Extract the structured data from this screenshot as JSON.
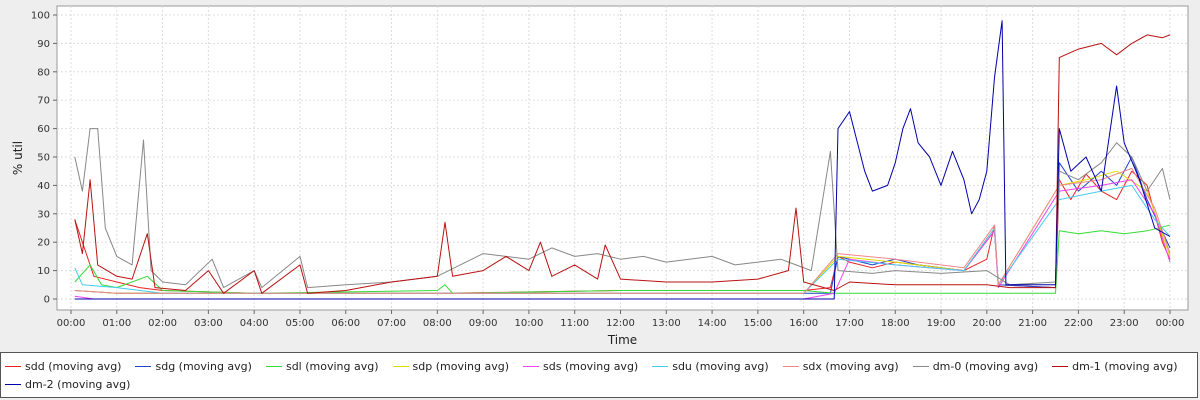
{
  "chart_data": {
    "type": "line",
    "title": "",
    "xlabel": "Time",
    "ylabel": "% util",
    "xlim": [
      "00:00",
      "24:00"
    ],
    "ylim": [
      0,
      100
    ],
    "grid": true,
    "legend_position": "bottom",
    "x_ticks": [
      "00:00",
      "01:00",
      "02:00",
      "03:00",
      "04:00",
      "05:00",
      "06:00",
      "07:00",
      "08:00",
      "09:00",
      "10:00",
      "11:00",
      "12:00",
      "13:00",
      "14:00",
      "15:00",
      "16:00",
      "17:00",
      "18:00",
      "19:00",
      "20:00",
      "21:00",
      "22:00",
      "23:00",
      "00:00"
    ],
    "y_ticks": [
      0,
      10,
      20,
      30,
      40,
      50,
      60,
      70,
      80,
      90,
      100
    ],
    "series": [
      {
        "name": "sdd (moving avg)",
        "color": "#ee2222",
        "points": [
          [
            "00:05",
            28
          ],
          [
            "00:15",
            20
          ],
          [
            "00:30",
            8
          ],
          [
            "01:00",
            6
          ],
          [
            "01:30",
            4
          ],
          [
            "02:00",
            3
          ],
          [
            "04:00",
            2
          ],
          [
            "08:00",
            2
          ],
          [
            "12:00",
            3
          ],
          [
            "16:00",
            3
          ],
          [
            "16:35",
            4
          ],
          [
            "16:45",
            15
          ],
          [
            "17:00",
            13
          ],
          [
            "17:30",
            11
          ],
          [
            "18:00",
            13
          ],
          [
            "18:30",
            12
          ],
          [
            "19:00",
            11
          ],
          [
            "19:30",
            10
          ],
          [
            "20:00",
            14
          ],
          [
            "20:10",
            26
          ],
          [
            "20:15",
            5
          ],
          [
            "21:30",
            4
          ],
          [
            "21:35",
            42
          ],
          [
            "21:50",
            35
          ],
          [
            "22:10",
            44
          ],
          [
            "22:30",
            38
          ],
          [
            "22:50",
            35
          ],
          [
            "23:10",
            45
          ],
          [
            "23:30",
            40
          ],
          [
            "23:50",
            20
          ],
          [
            "00:00",
            14
          ]
        ]
      },
      {
        "name": "sdg (moving avg)",
        "color": "#2244cc",
        "points": [
          [
            "00:05",
            3
          ],
          [
            "01:00",
            2
          ],
          [
            "08:00",
            2
          ],
          [
            "16:00",
            2
          ],
          [
            "16:35",
            2
          ],
          [
            "16:45",
            15
          ],
          [
            "17:30",
            12
          ],
          [
            "18:00",
            14
          ],
          [
            "18:30",
            12
          ],
          [
            "19:30",
            10
          ],
          [
            "20:10",
            24
          ],
          [
            "20:15",
            5
          ],
          [
            "21:30",
            4
          ],
          [
            "21:35",
            48
          ],
          [
            "22:00",
            38
          ],
          [
            "22:30",
            45
          ],
          [
            "22:50",
            40
          ],
          [
            "23:10",
            50
          ],
          [
            "23:30",
            35
          ],
          [
            "00:00",
            18
          ]
        ]
      },
      {
        "name": "sdl (moving avg)",
        "color": "#33dd33",
        "points": [
          [
            "00:05",
            6
          ],
          [
            "00:25",
            12
          ],
          [
            "00:40",
            5
          ],
          [
            "01:00",
            4
          ],
          [
            "01:40",
            8
          ],
          [
            "02:00",
            3
          ],
          [
            "04:00",
            2
          ],
          [
            "08:00",
            3
          ],
          [
            "08:10",
            5
          ],
          [
            "08:20",
            2
          ],
          [
            "12:00",
            3
          ],
          [
            "16:00",
            3
          ],
          [
            "16:40",
            2
          ],
          [
            "17:00",
            2
          ],
          [
            "19:00",
            2
          ],
          [
            "20:30",
            2
          ],
          [
            "21:30",
            2
          ],
          [
            "21:35",
            24
          ],
          [
            "22:00",
            23
          ],
          [
            "22:30",
            24
          ],
          [
            "23:00",
            23
          ],
          [
            "23:30",
            24
          ],
          [
            "00:00",
            26
          ]
        ]
      },
      {
        "name": "sdp (moving avg)",
        "color": "#dddd00",
        "points": [
          [
            "00:05",
            3
          ],
          [
            "01:00",
            2
          ],
          [
            "08:00",
            2
          ],
          [
            "16:00",
            2
          ],
          [
            "16:45",
            15
          ],
          [
            "18:00",
            13
          ],
          [
            "19:30",
            10
          ],
          [
            "20:10",
            25
          ],
          [
            "20:15",
            5
          ],
          [
            "21:35",
            40
          ],
          [
            "22:10",
            42
          ],
          [
            "22:50",
            45
          ],
          [
            "23:30",
            38
          ],
          [
            "00:00",
            15
          ]
        ]
      },
      {
        "name": "sds (moving avg)",
        "color": "#ee44ee",
        "points": [
          [
            "00:05",
            1
          ],
          [
            "00:30",
            0
          ],
          [
            "01:00",
            0
          ],
          [
            "04:00",
            0
          ],
          [
            "08:00",
            0
          ],
          [
            "16:00",
            0
          ],
          [
            "16:40",
            2
          ],
          [
            "17:00",
            14
          ],
          [
            "18:00",
            12
          ],
          [
            "19:30",
            10
          ],
          [
            "20:10",
            24
          ],
          [
            "20:15",
            4
          ],
          [
            "21:35",
            38
          ],
          [
            "22:30",
            40
          ],
          [
            "23:10",
            42
          ],
          [
            "23:40",
            30
          ],
          [
            "00:00",
            13
          ]
        ]
      },
      {
        "name": "sdu (moving avg)",
        "color": "#44ccee",
        "points": [
          [
            "00:05",
            11
          ],
          [
            "00:15",
            5
          ],
          [
            "01:00",
            4
          ],
          [
            "02:00",
            2
          ],
          [
            "08:00",
            2
          ],
          [
            "16:00",
            2
          ],
          [
            "16:45",
            14
          ],
          [
            "18:00",
            12
          ],
          [
            "19:30",
            10
          ],
          [
            "20:10",
            25
          ],
          [
            "20:15",
            5
          ],
          [
            "21:35",
            35
          ],
          [
            "22:30",
            38
          ],
          [
            "23:10",
            40
          ],
          [
            "23:40",
            28
          ],
          [
            "00:00",
            22
          ]
        ]
      },
      {
        "name": "sdx (moving avg)",
        "color": "#ee8888",
        "points": [
          [
            "00:05",
            3
          ],
          [
            "01:00",
            2
          ],
          [
            "08:00",
            2
          ],
          [
            "16:00",
            2
          ],
          [
            "16:45",
            16
          ],
          [
            "18:00",
            14
          ],
          [
            "19:30",
            11
          ],
          [
            "20:10",
            26
          ],
          [
            "20:15",
            5
          ],
          [
            "21:35",
            40
          ],
          [
            "22:30",
            42
          ],
          [
            "23:10",
            46
          ],
          [
            "23:40",
            32
          ],
          [
            "00:00",
            16
          ]
        ]
      },
      {
        "name": "dm-0 (moving avg)",
        "color": "#888888",
        "points": [
          [
            "00:05",
            50
          ],
          [
            "00:15",
            38
          ],
          [
            "00:25",
            60
          ],
          [
            "00:35",
            60
          ],
          [
            "00:45",
            25
          ],
          [
            "01:00",
            15
          ],
          [
            "01:20",
            12
          ],
          [
            "01:35",
            56
          ],
          [
            "01:45",
            10
          ],
          [
            "02:00",
            6
          ],
          [
            "02:30",
            5
          ],
          [
            "03:05",
            14
          ],
          [
            "03:20",
            4
          ],
          [
            "04:00",
            10
          ],
          [
            "04:10",
            4
          ],
          [
            "05:00",
            15
          ],
          [
            "05:10",
            4
          ],
          [
            "06:00",
            5
          ],
          [
            "07:00",
            6
          ],
          [
            "08:00",
            8
          ],
          [
            "08:30",
            12
          ],
          [
            "09:00",
            16
          ],
          [
            "09:30",
            15
          ],
          [
            "10:00",
            14
          ],
          [
            "10:30",
            18
          ],
          [
            "11:00",
            15
          ],
          [
            "11:30",
            16
          ],
          [
            "12:00",
            14
          ],
          [
            "12:30",
            15
          ],
          [
            "13:00",
            13
          ],
          [
            "13:30",
            14
          ],
          [
            "14:00",
            15
          ],
          [
            "14:30",
            12
          ],
          [
            "15:00",
            13
          ],
          [
            "15:30",
            14
          ],
          [
            "15:50",
            12
          ],
          [
            "16:10",
            10
          ],
          [
            "16:35",
            52
          ],
          [
            "16:45",
            10
          ],
          [
            "17:30",
            9
          ],
          [
            "18:00",
            10
          ],
          [
            "19:00",
            9
          ],
          [
            "20:00",
            10
          ],
          [
            "20:30",
            5
          ],
          [
            "21:30",
            6
          ],
          [
            "21:35",
            45
          ],
          [
            "22:00",
            42
          ],
          [
            "22:30",
            48
          ],
          [
            "22:50",
            55
          ],
          [
            "23:10",
            50
          ],
          [
            "23:30",
            38
          ],
          [
            "23:50",
            46
          ],
          [
            "00:00",
            35
          ]
        ]
      },
      {
        "name": "dm-1 (moving avg)",
        "color": "#bb1111",
        "points": [
          [
            "00:05",
            28
          ],
          [
            "00:15",
            16
          ],
          [
            "00:25",
            42
          ],
          [
            "00:35",
            12
          ],
          [
            "01:00",
            8
          ],
          [
            "01:20",
            7
          ],
          [
            "01:40",
            23
          ],
          [
            "01:50",
            4
          ],
          [
            "02:30",
            3
          ],
          [
            "03:00",
            10
          ],
          [
            "03:20",
            2
          ],
          [
            "04:00",
            10
          ],
          [
            "04:10",
            2
          ],
          [
            "05:00",
            12
          ],
          [
            "05:10",
            2
          ],
          [
            "06:00",
            3
          ],
          [
            "07:00",
            6
          ],
          [
            "08:00",
            8
          ],
          [
            "08:10",
            27
          ],
          [
            "08:20",
            8
          ],
          [
            "09:00",
            10
          ],
          [
            "09:30",
            15
          ],
          [
            "10:00",
            10
          ],
          [
            "10:15",
            20
          ],
          [
            "10:30",
            8
          ],
          [
            "11:00",
            12
          ],
          [
            "11:30",
            7
          ],
          [
            "11:40",
            19
          ],
          [
            "12:00",
            7
          ],
          [
            "13:00",
            6
          ],
          [
            "14:00",
            6
          ],
          [
            "15:00",
            7
          ],
          [
            "15:40",
            10
          ],
          [
            "15:50",
            32
          ],
          [
            "16:00",
            6
          ],
          [
            "16:40",
            3
          ],
          [
            "17:00",
            6
          ],
          [
            "18:00",
            5
          ],
          [
            "19:00",
            5
          ],
          [
            "20:00",
            5
          ],
          [
            "20:30",
            4
          ],
          [
            "21:30",
            4
          ],
          [
            "21:35",
            85
          ],
          [
            "22:00",
            88
          ],
          [
            "22:30",
            90
          ],
          [
            "22:50",
            86
          ],
          [
            "23:10",
            90
          ],
          [
            "23:30",
            93
          ],
          [
            "23:50",
            92
          ],
          [
            "00:00",
            93
          ]
        ]
      },
      {
        "name": "dm-2 (moving avg)",
        "color": "#0000aa",
        "points": [
          [
            "00:05",
            0
          ],
          [
            "16:40",
            0
          ],
          [
            "16:45",
            60
          ],
          [
            "17:00",
            66
          ],
          [
            "17:20",
            45
          ],
          [
            "17:30",
            38
          ],
          [
            "17:50",
            40
          ],
          [
            "18:00",
            48
          ],
          [
            "18:10",
            60
          ],
          [
            "18:20",
            67
          ],
          [
            "18:30",
            55
          ],
          [
            "18:45",
            50
          ],
          [
            "19:00",
            40
          ],
          [
            "19:15",
            52
          ],
          [
            "19:30",
            42
          ],
          [
            "19:40",
            30
          ],
          [
            "19:50",
            35
          ],
          [
            "20:00",
            45
          ],
          [
            "20:10",
            78
          ],
          [
            "20:20",
            98
          ],
          [
            "20:25",
            5
          ],
          [
            "21:30",
            5
          ],
          [
            "21:35",
            60
          ],
          [
            "21:50",
            45
          ],
          [
            "22:10",
            50
          ],
          [
            "22:30",
            38
          ],
          [
            "22:50",
            75
          ],
          [
            "23:00",
            55
          ],
          [
            "23:20",
            42
          ],
          [
            "23:40",
            25
          ],
          [
            "00:00",
            22
          ]
        ]
      }
    ]
  }
}
